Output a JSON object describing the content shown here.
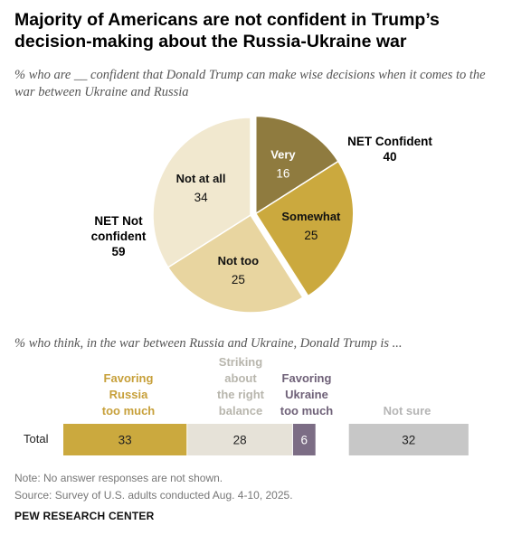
{
  "title": "Majority of Americans are not confident in Trump’s decision-making about the Russia-Ukraine war",
  "subtitle": "% who are __ confident that Donald Trump can make wise decisions when it comes to the war between Ukraine and Russia",
  "subtitle2": "% who think, in the war between Russia and Ukraine, Donald Trump is ...",
  "net_confident": {
    "label": "NET Confident",
    "value": "40"
  },
  "net_not_confident": {
    "label": "NET Not\nconfident",
    "value": "59"
  },
  "colors": {
    "very": "#8f7b3f",
    "somewhat": "#cba93e",
    "not_too": "#e8d5a0",
    "not_at_all": "#f1e8cf",
    "favoring_russia": "#cba93e",
    "balance": "#e6e2d8",
    "favoring_ukraine": "#7c6d85",
    "not_sure": "#c7c7c7",
    "cat_russia_text": "#c7a03a",
    "cat_balance_text": "#b8b6ad",
    "cat_ukraine_text": "#6f6178",
    "cat_notsure_text": "#b5b5b5"
  },
  "chart_data": [
    {
      "type": "pie",
      "slices": [
        {
          "label": "Very",
          "value": 16
        },
        {
          "label": "Somewhat",
          "value": 25
        },
        {
          "label": "Not too",
          "value": 25
        },
        {
          "label": "Not at all",
          "value": 34
        }
      ]
    },
    {
      "type": "bar",
      "orientation": "horizontal-stacked",
      "categories": [
        "Total"
      ],
      "series": [
        {
          "name": "Favoring\nRussia\ntoo much",
          "values": [
            33
          ]
        },
        {
          "name": "Striking\nabout\nthe right\nbalance",
          "values": [
            28
          ]
        },
        {
          "name": "Favoring\nUkraine\ntoo much",
          "values": [
            6
          ]
        },
        {
          "name": "Not sure",
          "values": [
            32
          ]
        }
      ]
    }
  ],
  "note": "Note: No answer responses are not shown.",
  "source": "Source: Survey of U.S. adults conducted Aug. 4-10, 2025.",
  "logo": "PEW RESEARCH CENTER"
}
